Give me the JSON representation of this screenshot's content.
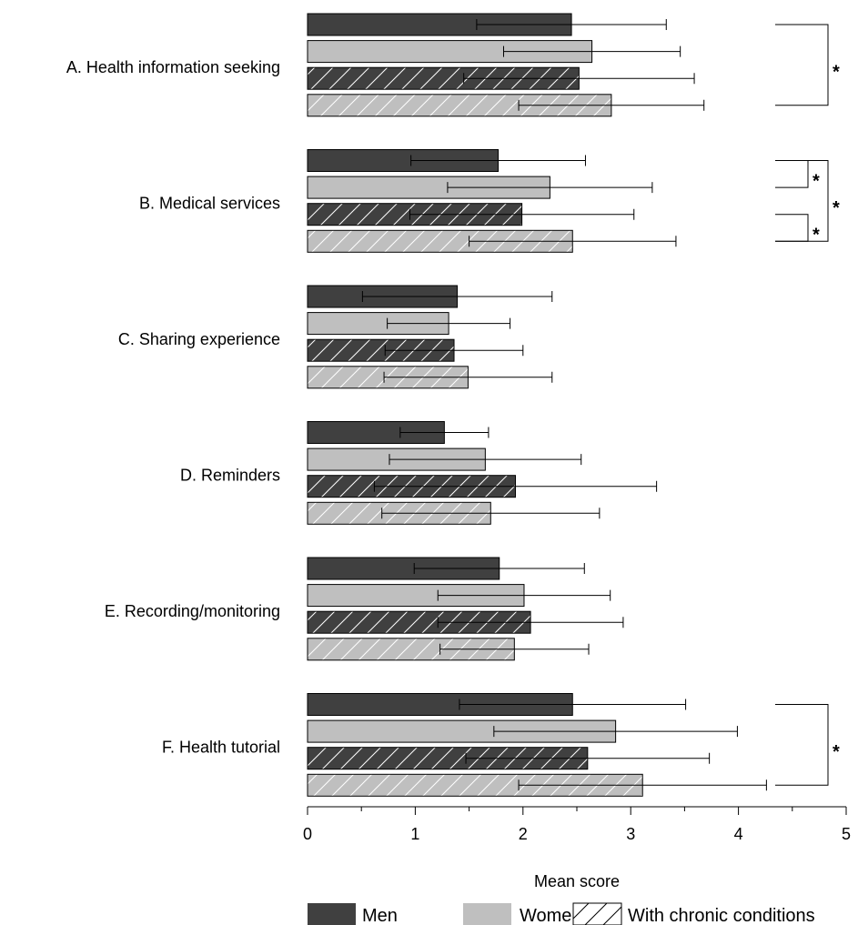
{
  "chart_data": {
    "type": "bar",
    "orientation": "horizontal",
    "categories": [
      "A. Health information seeking",
      "B. Medical services",
      "C. Sharing experience",
      "D. Reminders",
      "E. Recording/monitoring",
      "F. Health tutorial"
    ],
    "series": [
      {
        "name": "Men",
        "fill": "#404040",
        "hatched": false,
        "values": [
          2.45,
          1.77,
          1.39,
          1.27,
          1.78,
          2.46
        ],
        "errors": [
          0.88,
          0.81,
          0.88,
          0.41,
          0.79,
          1.05
        ]
      },
      {
        "name": "Women",
        "fill": "#bfbfbf",
        "hatched": false,
        "values": [
          2.64,
          2.25,
          1.31,
          1.65,
          2.01,
          2.86
        ],
        "errors": [
          0.82,
          0.95,
          0.57,
          0.89,
          0.8,
          1.13
        ]
      },
      {
        "name": "Men with chronic conditions",
        "fill": "#404040",
        "hatched": true,
        "values": [
          2.52,
          1.99,
          1.36,
          1.93,
          2.07,
          2.6
        ],
        "errors": [
          1.07,
          1.04,
          0.64,
          1.31,
          0.86,
          1.13
        ]
      },
      {
        "name": "Women with chronic conditions",
        "fill": "#bfbfbf",
        "hatched": true,
        "values": [
          2.82,
          2.46,
          1.49,
          1.7,
          1.92,
          3.11
        ],
        "errors": [
          0.86,
          0.96,
          0.78,
          1.01,
          0.69,
          1.15
        ]
      }
    ],
    "xlabel": "Mean score",
    "xlim": [
      0,
      5
    ],
    "xticks": [
      0,
      1,
      2,
      3,
      4,
      5
    ],
    "grid": false,
    "legend": {
      "placement": "bottom",
      "entries": [
        {
          "label": "Men",
          "fill": "#404040",
          "hatched": false
        },
        {
          "label": "Women",
          "fill": "#bfbfbf",
          "hatched": false
        },
        {
          "label": "With chronic conditions",
          "fill": "#ffffff",
          "hatched": true
        }
      ]
    },
    "significance": [
      {
        "category": 0,
        "from_bar": 0,
        "to_bar": 3,
        "label": "*"
      },
      {
        "category": 1,
        "from_bar": 0,
        "to_bar": 1,
        "label": "*"
      },
      {
        "category": 1,
        "from_bar": 2,
        "to_bar": 3,
        "label": "*"
      },
      {
        "category": 1,
        "from_bar": 0,
        "to_bar": 3,
        "label": "*",
        "outer": true
      },
      {
        "category": 5,
        "from_bar": 0,
        "to_bar": 3,
        "label": "*"
      }
    ]
  }
}
